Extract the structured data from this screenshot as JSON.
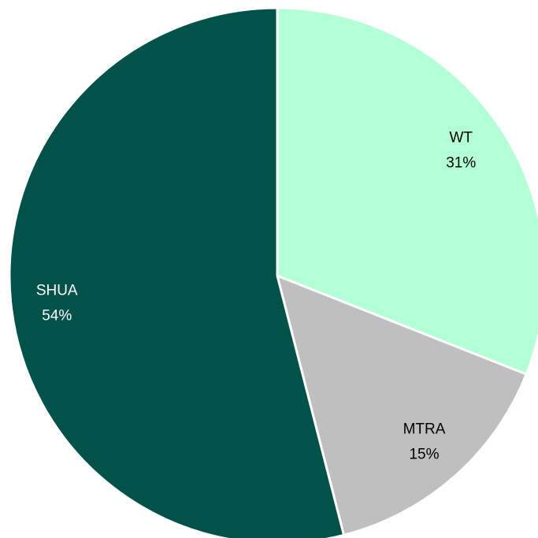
{
  "chart_data": {
    "type": "pie",
    "categories": [
      "WT",
      "MTRA",
      "SHUA"
    ],
    "values": [
      31,
      15,
      54
    ],
    "value_labels": [
      "31%",
      "15%",
      "54%"
    ],
    "colors": [
      "#b3ffd6",
      "#bfbfbf",
      "#02524a"
    ]
  }
}
